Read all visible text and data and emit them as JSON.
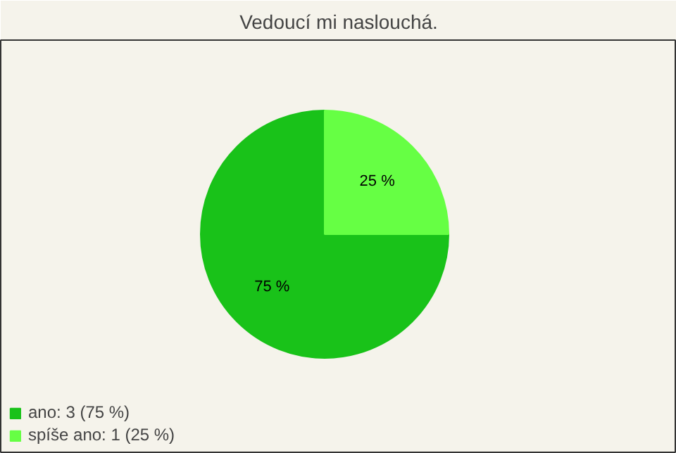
{
  "chart_data": {
    "type": "pie",
    "title": "Vedoucí mi naslouchá.",
    "categories": [
      "ano: 3 (75 %)",
      "spíše ano: 1 (25 %)"
    ],
    "values": [
      75,
      25
    ],
    "colors": [
      "#19c219",
      "#66ff44"
    ],
    "value_labels": [
      "75 %",
      "25 %"
    ],
    "legend": "bottom left"
  }
}
